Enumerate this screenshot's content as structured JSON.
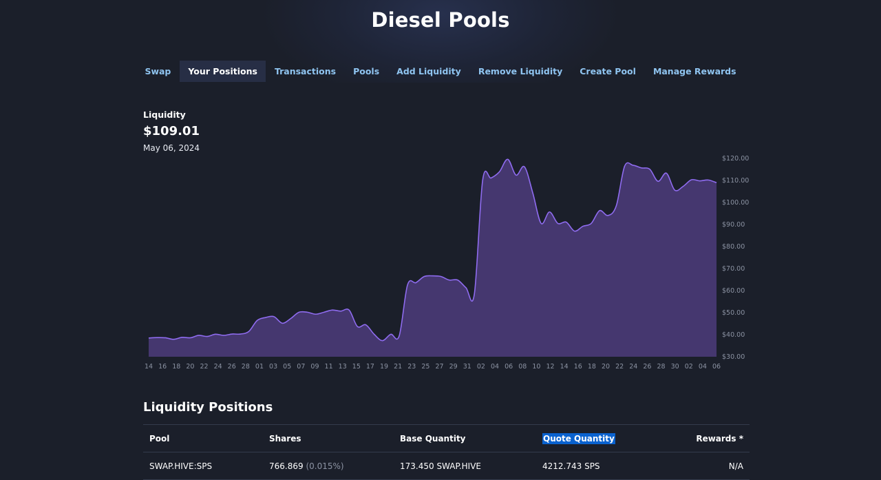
{
  "app": {
    "title": "Diesel Pools"
  },
  "nav": {
    "items": [
      {
        "label": "Swap"
      },
      {
        "label": "Your Positions",
        "active": true
      },
      {
        "label": "Transactions"
      },
      {
        "label": "Pools"
      },
      {
        "label": "Add Liquidity"
      },
      {
        "label": "Remove Liquidity"
      },
      {
        "label": "Create Pool"
      },
      {
        "label": "Manage Rewards"
      }
    ]
  },
  "summary": {
    "label": "Liquidity",
    "value": "$109.01",
    "date": "May 06, 2024"
  },
  "colors": {
    "accent": "#8f6cf0",
    "fill": "#45376f",
    "link": "#8fc4f0",
    "highlight": "#0a62cf"
  },
  "chart_data": {
    "type": "area",
    "ylim": [
      30,
      120
    ],
    "yticks": [
      "$120.00",
      "$110.00",
      "$100.00",
      "$90.00",
      "$80.00",
      "$70.00",
      "$60.00",
      "$50.00",
      "$40.00",
      "$30.00"
    ],
    "xticks": [
      "14",
      "16",
      "18",
      "20",
      "22",
      "24",
      "26",
      "28",
      "01",
      "03",
      "05",
      "07",
      "09",
      "11",
      "13",
      "15",
      "17",
      "19",
      "21",
      "23",
      "25",
      "27",
      "29",
      "31",
      "02",
      "04",
      "06",
      "08",
      "10",
      "12",
      "14",
      "16",
      "18",
      "20",
      "22",
      "24",
      "26",
      "28",
      "30",
      "02",
      "04",
      "06"
    ],
    "series": [
      {
        "values": [
          38.5,
          38.7,
          38.6,
          37.9,
          38.8,
          38.6,
          39.7,
          39.2,
          40.2,
          39.7,
          40.3,
          40.3,
          41.5,
          46.5,
          47.8,
          48.2,
          45.2,
          47.3,
          50.2,
          50.2,
          49.3,
          50.2,
          51.2,
          50.7,
          51.2,
          43.7,
          44.5,
          40.2,
          37.3,
          40.2,
          39.4,
          62.6,
          63.6,
          66.4,
          66.7,
          66.4,
          64.8,
          64.8,
          61.3,
          58.4,
          110.2,
          111.1,
          113.9,
          119.6,
          112.4,
          116.2,
          104.3,
          90.5,
          95.7,
          90.5,
          91.1,
          87.0,
          89.2,
          90.5,
          96.3,
          94.1,
          98.5,
          116.5,
          116.9,
          115.7,
          115.1,
          109.6,
          113.3,
          105.6,
          107.3,
          110.3,
          109.8,
          110.2,
          109.0
        ]
      }
    ]
  },
  "positions": {
    "title": "Liquidity Positions",
    "columns": [
      "Pool",
      "Shares",
      "Base Quantity",
      "Quote Quantity",
      "Rewards *"
    ],
    "rows": [
      {
        "pool": "SWAP.HIVE:SPS",
        "shares": "766.869",
        "share_pct": "(0.015%)",
        "base": "173.450 SWAP.HIVE",
        "quote": "4212.743 SPS",
        "rewards": "N/A"
      }
    ]
  }
}
